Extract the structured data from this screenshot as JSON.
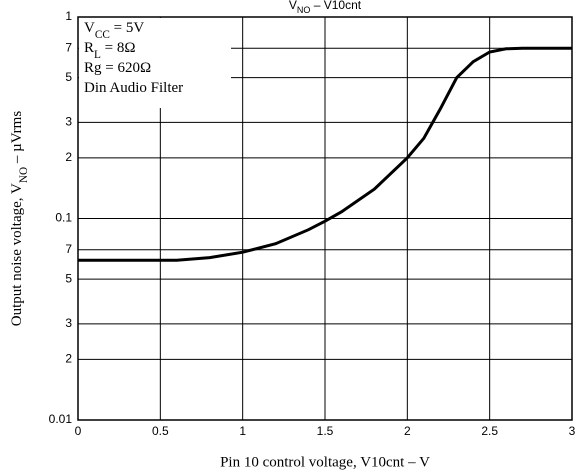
{
  "chart_data": {
    "type": "line",
    "title": [
      "V",
      "NO",
      " – V10cnt"
    ],
    "x_label": "Pin 10 control voltage, V10cnt  –  V",
    "y_label": [
      "Output noise voltage, V",
      "NO",
      "  –  µVrms"
    ],
    "annotations": [
      [
        "V",
        "CC",
        " = 5V"
      ],
      [
        "R",
        "L",
        " = 8Ω"
      ],
      [
        "Rg = 620Ω"
      ],
      [
        "Din Audio Filter"
      ]
    ],
    "x": [
      0,
      0.3,
      0.6,
      0.8,
      1,
      1.2,
      1.4,
      1.5,
      1.6,
      1.8,
      2,
      2.1,
      2.2,
      2.3,
      2.4,
      2.5,
      2.6,
      2.7,
      3
    ],
    "series": [
      {
        "color": "#000000",
        "values": [
          0.062,
          0.062,
          0.062,
          0.064,
          0.068,
          0.075,
          0.088,
          0.097,
          0.108,
          0.14,
          0.2,
          0.25,
          0.35,
          0.5,
          0.6,
          0.67,
          0.695,
          0.7,
          0.7
        ]
      }
    ],
    "xlim": [
      0,
      3
    ],
    "xticks": [
      0,
      0.5,
      1,
      1.5,
      2,
      2.5,
      3
    ],
    "ylim": [
      0.01,
      1
    ],
    "ylog": true,
    "yticks": [
      0.01,
      {
        "value": 0.02,
        "label": "2"
      },
      {
        "value": 0.03,
        "label": "3"
      },
      {
        "value": 0.05,
        "label": "5"
      },
      {
        "value": 0.07,
        "label": "7"
      },
      0.1,
      {
        "value": 0.2,
        "label": "2"
      },
      {
        "value": 0.3,
        "label": "3"
      },
      {
        "value": 0.5,
        "label": "5"
      },
      {
        "value": 0.7,
        "label": "7"
      },
      1
    ],
    "grid": true
  }
}
